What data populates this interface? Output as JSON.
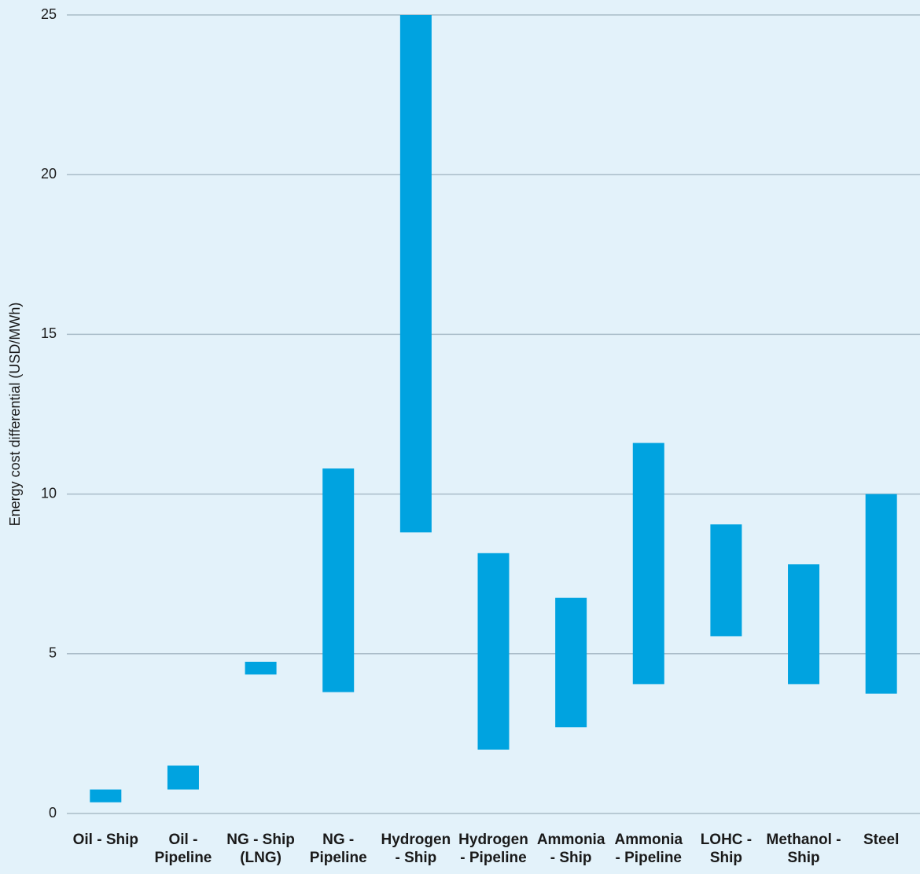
{
  "chart_data": {
    "type": "range-bar",
    "y_label": "Energy cost differential (USD/MWh)",
    "categories": [
      "Oil - Ship",
      "Oil - Pipeline",
      "NG - Ship (LNG)",
      "NG - Pipeline",
      "Hydrogen - Ship",
      "Hydrogen - Pipeline",
      "Ammonia - Ship",
      "Ammonia - Pipeline",
      "LOHC - Ship",
      "Methanol - Ship",
      "Steel"
    ],
    "low": [
      0.35,
      0.75,
      4.35,
      3.8,
      8.8,
      2.0,
      2.7,
      4.05,
      5.55,
      4.05,
      3.75
    ],
    "high": [
      0.75,
      1.5,
      4.75,
      10.8,
      25,
      8.15,
      6.75,
      11.6,
      9.05,
      7.8,
      10
    ],
    "color": "#00a3e0",
    "ylim": [
      0,
      25
    ],
    "yticks": [
      0,
      5,
      10,
      15,
      20,
      25
    ],
    "grid": true
  }
}
